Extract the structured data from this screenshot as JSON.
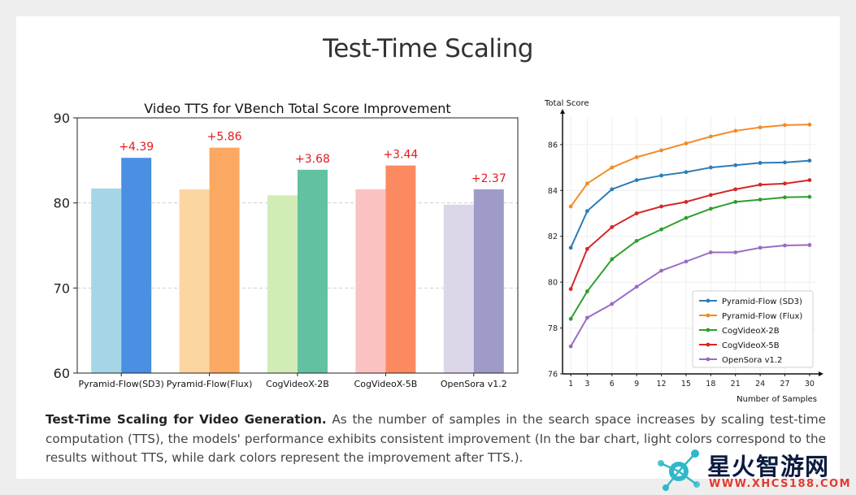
{
  "page": {
    "title": "Test-Time Scaling",
    "caption_bold": "Test-Time Scaling for Video Generation.",
    "caption_text": " As the number of samples in the search space increases by scaling test-time computation (TTS), the models' performance exhibits consistent improvement (In the bar chart, light colors correspond to the results without TTS, while dark colors represent the improvement after TTS.)."
  },
  "watermark": {
    "text": "星火智游网",
    "url": "WWW.XHCS188.COM"
  },
  "chart_data": [
    {
      "type": "bar",
      "title": "Video TTS for VBench Total Score Improvement",
      "xlabel": "",
      "ylabel": "",
      "ylim": [
        60,
        90
      ],
      "yticks": [
        60,
        70,
        80,
        90
      ],
      "grid": true,
      "categories": [
        "Pyramid-Flow(SD3)",
        "Pyramid-Flow(Flux)",
        "CogVideoX-2B",
        "CogVideoX-5B",
        "OpenSora v1.2"
      ],
      "series": [
        {
          "values": [
            81.7,
            81.6,
            80.9,
            81.6,
            79.8
          ]
        },
        {
          "values": [
            85.3,
            86.5,
            83.9,
            84.4,
            81.6
          ]
        }
      ],
      "annotations": [
        "+4.39",
        "+5.86",
        "+3.68",
        "+3.44",
        "+2.37"
      ],
      "light_colors": [
        "#a6d6e6",
        "#fdd5a0",
        "#d2ecb6",
        "#fbc2c2",
        "#ddd6e8"
      ],
      "dark_colors": [
        "#4a8fe2",
        "#fba862",
        "#62c1a0",
        "#fc8a60",
        "#9f9bc8"
      ],
      "annotation_color": "#e31a1c"
    },
    {
      "type": "line",
      "title": "",
      "ylabel": "Total Score",
      "xlabel": "Number of Samples",
      "x": [
        1,
        3,
        6,
        9,
        12,
        15,
        18,
        21,
        24,
        27,
        30
      ],
      "xlim": [
        0,
        30.8
      ],
      "ylim": [
        76,
        87.2
      ],
      "yticks": [
        76,
        78,
        80,
        82,
        84,
        86
      ],
      "grid": true,
      "legend_position": "bottom-right",
      "series": [
        {
          "name": "Pyramid-Flow (SD3)",
          "color": "#2d7db5",
          "values": [
            81.5,
            83.1,
            84.05,
            84.45,
            84.65,
            84.8,
            85.0,
            85.1,
            85.2,
            85.22,
            85.3
          ]
        },
        {
          "name": "Pyramid-Flow (Flux)",
          "color": "#f58a25",
          "values": [
            83.3,
            84.3,
            85.0,
            85.45,
            85.75,
            86.05,
            86.35,
            86.6,
            86.75,
            86.85,
            86.87
          ]
        },
        {
          "name": "CogVideoX-2B",
          "color": "#2ca02c",
          "values": [
            78.4,
            79.6,
            81.0,
            81.8,
            82.3,
            82.8,
            83.2,
            83.5,
            83.6,
            83.7,
            83.72
          ]
        },
        {
          "name": "CogVideoX-5B",
          "color": "#d62728",
          "values": [
            79.7,
            81.45,
            82.4,
            83.0,
            83.3,
            83.5,
            83.8,
            84.05,
            84.25,
            84.3,
            84.45
          ]
        },
        {
          "name": "OpenSora v1.2",
          "color": "#9a6bc4",
          "values": [
            77.2,
            78.45,
            79.05,
            79.8,
            80.5,
            80.9,
            81.3,
            81.3,
            81.5,
            81.6,
            81.62
          ]
        }
      ]
    }
  ]
}
